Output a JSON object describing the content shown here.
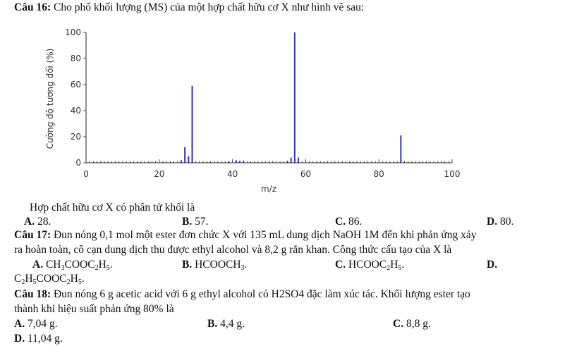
{
  "q16": {
    "number": "Câu 16:",
    "text": "Cho phổ khối lượng (MS) của một hợp chất hữu cơ X như hình vẽ sau:",
    "question": "Hợp chất hữu cơ X có phân tử khối là",
    "options": [
      {
        "letter": "A.",
        "text": "28."
      },
      {
        "letter": "B.",
        "text": "57."
      },
      {
        "letter": "C.",
        "text": "86."
      },
      {
        "letter": "D.",
        "text": "80."
      }
    ]
  },
  "chart_data": {
    "type": "bar",
    "xlabel": "m/z",
    "ylabel": "Cường độ tương đối (%)",
    "xlim": [
      0,
      100
    ],
    "ylim": [
      0,
      100
    ],
    "xticks": [
      0,
      20,
      40,
      60,
      80,
      100
    ],
    "yticks": [
      0,
      20,
      40,
      60,
      80,
      100
    ],
    "color": "#2b2fd6",
    "peaks": [
      {
        "mz": 26,
        "intensity": 2
      },
      {
        "mz": 27,
        "intensity": 12
      },
      {
        "mz": 28,
        "intensity": 5
      },
      {
        "mz": 29,
        "intensity": 59
      },
      {
        "mz": 39,
        "intensity": 1
      },
      {
        "mz": 41,
        "intensity": 2
      },
      {
        "mz": 42,
        "intensity": 1.5
      },
      {
        "mz": 43,
        "intensity": 1.5
      },
      {
        "mz": 55,
        "intensity": 1.5
      },
      {
        "mz": 56,
        "intensity": 4
      },
      {
        "mz": 57,
        "intensity": 100
      },
      {
        "mz": 58,
        "intensity": 4
      },
      {
        "mz": 86,
        "intensity": 21
      }
    ]
  },
  "q17": {
    "number": "Câu 17:",
    "line1": "Đun nóng 0,1 mol một ester đơn chức X với 135 mL dung dịch NaOH 1M đến khi phản ứng xảy",
    "line2": "ra hoàn toàn, cô cạn dung dịch thu được ethyl alcohol và 8,2 g rắn khan. Công thức cấu tạo của X là",
    "options": [
      {
        "letter": "A.",
        "parts": [
          "CH",
          "3",
          "COOC",
          "2",
          "H",
          "5",
          "."
        ]
      },
      {
        "letter": "B.",
        "parts": [
          "HCOOCH",
          "3",
          "."
        ]
      },
      {
        "letter": "C.",
        "parts": [
          "HCOOC",
          "2",
          "H",
          "5",
          "."
        ]
      },
      {
        "letter": "D.",
        "parts": [
          "C",
          "2",
          "H",
          "5",
          "COOC",
          "2",
          "H",
          "5",
          "."
        ]
      }
    ]
  },
  "q18": {
    "number": "Câu 18:",
    "line1": "Đun nóng 6 g acetic acid với 6 g ethyl alcohol có H2SO4 đặc làm xúc tác. Khối lượng ester tạo",
    "line2": "thành khi hiệu suất phản ứng 80% là",
    "options": [
      {
        "letter": "A.",
        "text": "7,04 g."
      },
      {
        "letter": "B.",
        "text": "4,4 g."
      },
      {
        "letter": "C.",
        "text": "8,8 g."
      },
      {
        "letter": "D.",
        "text": "11,04 g."
      }
    ]
  }
}
